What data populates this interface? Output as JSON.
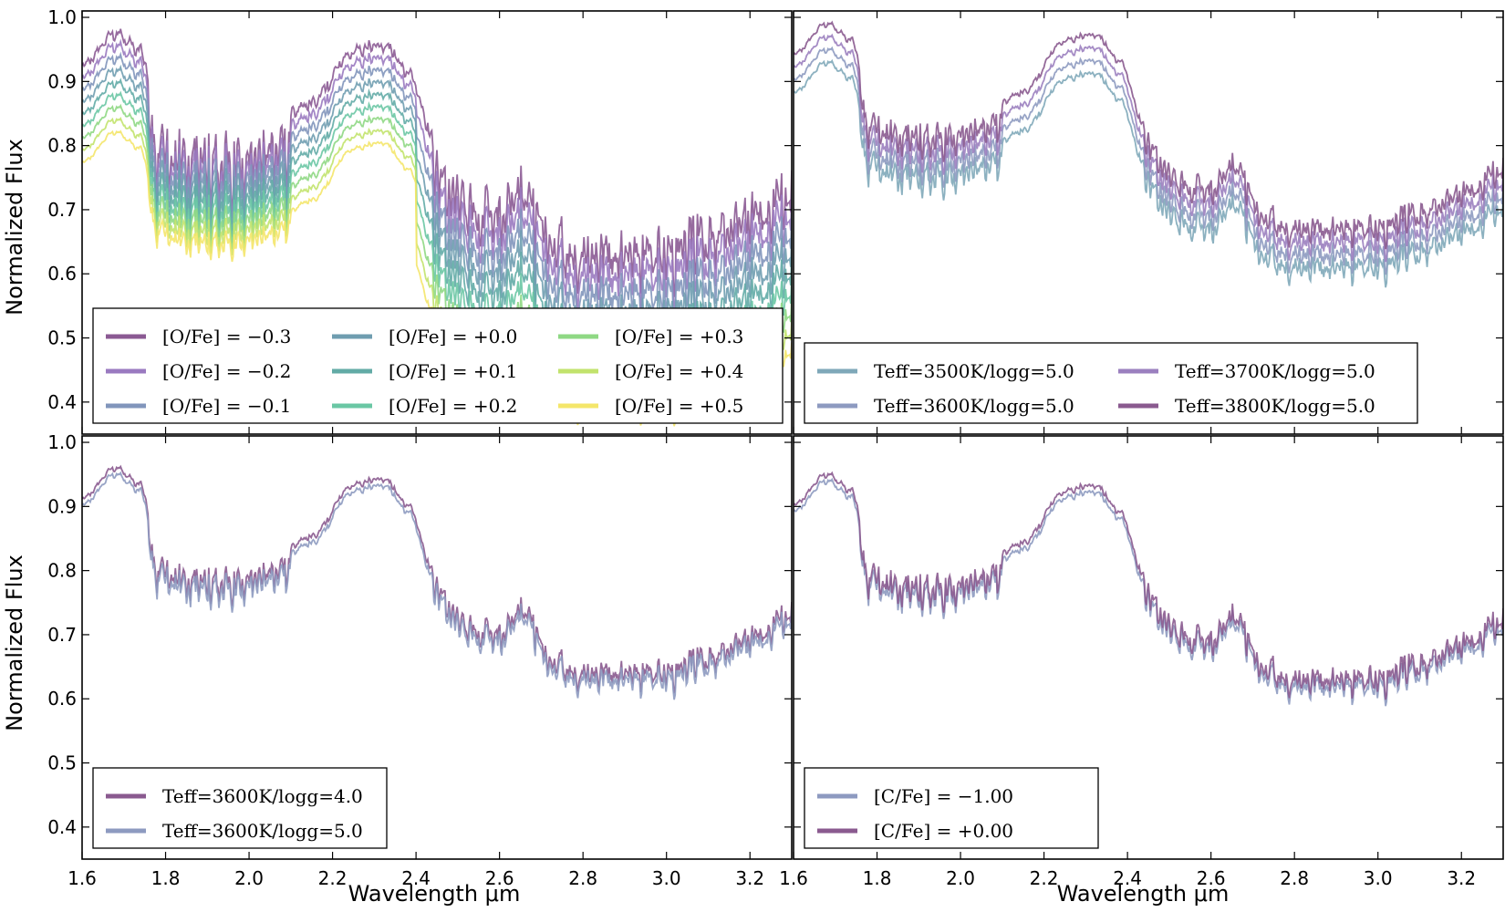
{
  "figure": {
    "ylabel": "Normalized Flux",
    "xlabel": "Wavelength μm"
  },
  "chart_data": [
    {
      "type": "line",
      "panel": "top-left",
      "xlim": [
        1.6,
        3.3
      ],
      "ylim": [
        0.35,
        1.01
      ],
      "xticks": [
        "1.6",
        "1.8",
        "2.0",
        "2.2",
        "2.4",
        "2.6",
        "2.8",
        "3.0",
        "3.2"
      ],
      "yticks": [
        "0.4",
        "0.5",
        "0.6",
        "0.7",
        "0.8",
        "0.9",
        "1.0"
      ],
      "legend_position": "lower-left",
      "legend_columns": 3,
      "series": [
        {
          "name": "[O/Fe] = −0.3",
          "color": "#8b5a93",
          "offset": 0.03
        },
        {
          "name": "[O/Fe] = −0.2",
          "color": "#9a7ac0",
          "offset": 0.015
        },
        {
          "name": "[O/Fe] = −0.1",
          "color": "#8195bb",
          "offset": 0.0
        },
        {
          "name": "[O/Fe] = +0.0",
          "color": "#6f9db0",
          "offset": -0.015
        },
        {
          "name": "[O/Fe] = +0.1",
          "color": "#62aba6",
          "offset": -0.03
        },
        {
          "name": "[O/Fe] = +0.2",
          "color": "#6ac7a4",
          "offset": -0.045
        },
        {
          "name": "[O/Fe] = +0.3",
          "color": "#8fd884",
          "offset": -0.06
        },
        {
          "name": "[O/Fe] = +0.4",
          "color": "#c2e36d",
          "offset": -0.075
        },
        {
          "name": "[O/Fe] = +0.5",
          "color": "#f4e66a",
          "offset": -0.09
        }
      ]
    },
    {
      "type": "line",
      "panel": "top-right",
      "xlim": [
        1.6,
        3.3
      ],
      "ylim": [
        0.35,
        1.01
      ],
      "xticks": [
        "1.6",
        "1.8",
        "2.0",
        "2.2",
        "2.4",
        "2.6",
        "2.8",
        "3.0",
        "3.2"
      ],
      "yticks": [
        "0.4",
        "0.5",
        "0.6",
        "0.7",
        "0.8",
        "0.9",
        "1.0"
      ],
      "legend_position": "lower-left",
      "legend_columns": 2,
      "series": [
        {
          "name": "Teff=3500K/logg=5.0",
          "color": "#7fa8b9",
          "offset": -0.02
        },
        {
          "name": "Teff=3600K/logg=5.0",
          "color": "#8d9ac0",
          "offset": 0.0
        },
        {
          "name": "Teff=3700K/logg=5.0",
          "color": "#9b80bf",
          "offset": 0.02
        },
        {
          "name": "Teff=3800K/logg=5.0",
          "color": "#8a5a8f",
          "offset": 0.04
        }
      ]
    },
    {
      "type": "line",
      "panel": "bottom-left",
      "xlim": [
        1.6,
        3.3
      ],
      "ylim": [
        0.35,
        1.01
      ],
      "xticks": [
        "1.6",
        "1.8",
        "2.0",
        "2.2",
        "2.4",
        "2.6",
        "2.8",
        "3.0",
        "3.2"
      ],
      "yticks": [
        "0.4",
        "0.5",
        "0.6",
        "0.7",
        "0.8",
        "0.9",
        "1.0"
      ],
      "legend_position": "lower-left",
      "legend_columns": 1,
      "series": [
        {
          "name": "Teff=3600K/logg=4.0",
          "color": "#8a5a8f",
          "offset": 0.01
        },
        {
          "name": "Teff=3600K/logg=5.0",
          "color": "#8d9ac0",
          "offset": 0.0
        }
      ]
    },
    {
      "type": "line",
      "panel": "bottom-right",
      "xlim": [
        1.6,
        3.3
      ],
      "ylim": [
        0.35,
        1.01
      ],
      "xticks": [
        "1.6",
        "1.8",
        "2.0",
        "2.2",
        "2.4",
        "2.6",
        "2.8",
        "3.0",
        "3.2"
      ],
      "yticks": [
        "0.4",
        "0.5",
        "0.6",
        "0.7",
        "0.8",
        "0.9",
        "1.0"
      ],
      "legend_position": "lower-left",
      "legend_columns": 1,
      "series": [
        {
          "name": "[C/Fe] = −1.00",
          "color": "#8d9ac0",
          "offset": -0.01
        },
        {
          "name": "[C/Fe] = +0.00",
          "color": "#8a5a8f",
          "offset": 0.0
        }
      ]
    }
  ]
}
